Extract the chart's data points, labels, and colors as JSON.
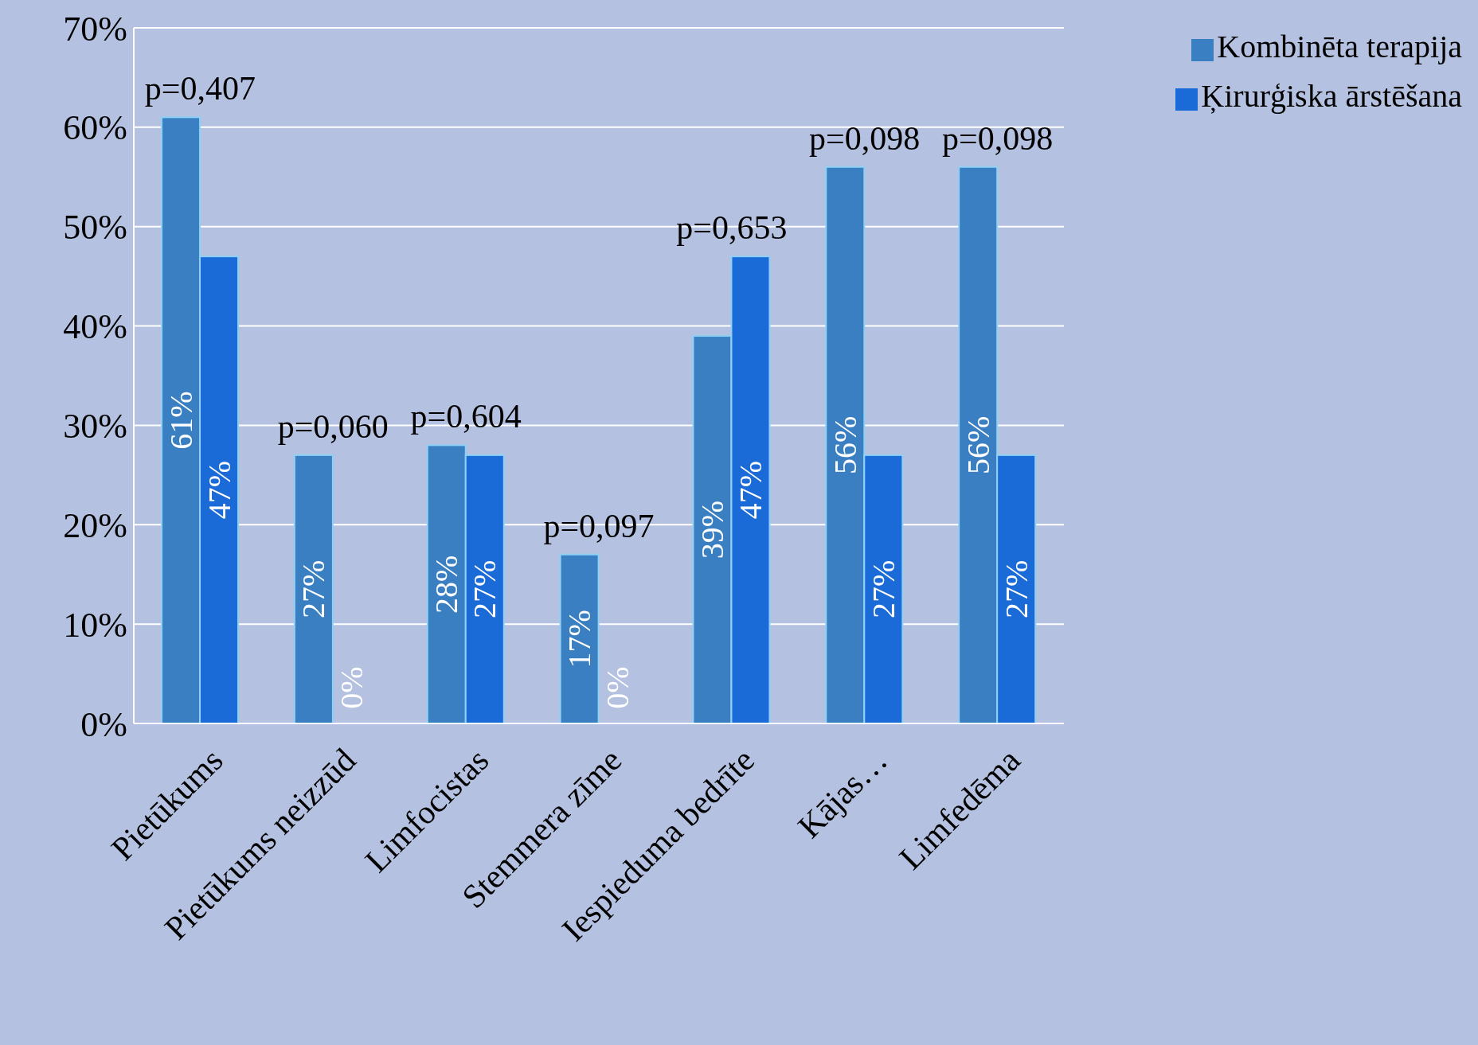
{
  "chart_data": {
    "type": "bar",
    "categories": [
      "Pietūkums",
      "Pietūkums neizzūd",
      "Limfocistas",
      "Stemmera zīme",
      "Iespieduma bedrīte",
      "Kājas…",
      "Limfedēma"
    ],
    "series": [
      {
        "name": "Kombinēta terapija",
        "color": "#3a7fc2",
        "values": [
          61,
          27,
          28,
          17,
          39,
          56,
          56
        ],
        "value_labels": [
          "61%",
          "27%",
          "28%",
          "17%",
          "39%",
          "56%",
          "56%"
        ]
      },
      {
        "name": "Ķirurģiska ārstēšana",
        "color": "#1a6ad8",
        "values": [
          47,
          0,
          27,
          0,
          47,
          27,
          27
        ],
        "value_labels": [
          "47%",
          "0%",
          "27%",
          "0%",
          "47%",
          "27%",
          "27%"
        ]
      }
    ],
    "ylim": [
      0,
      70
    ],
    "yticks": [
      {
        "value": 0,
        "label": "0%"
      },
      {
        "value": 10,
        "label": "10%"
      },
      {
        "value": 20,
        "label": "20%"
      },
      {
        "value": 30,
        "label": "30%"
      },
      {
        "value": 40,
        "label": "40%"
      },
      {
        "value": 50,
        "label": "50%"
      },
      {
        "value": 60,
        "label": "60%"
      },
      {
        "value": 70,
        "label": "70%"
      }
    ],
    "grid": "y",
    "legend": "top right",
    "annotations": [
      "p=0,407",
      "p=0,060",
      "p=0,604",
      "p=0,097",
      "p=0,653",
      "p=0,098",
      "p=0,098"
    ]
  }
}
